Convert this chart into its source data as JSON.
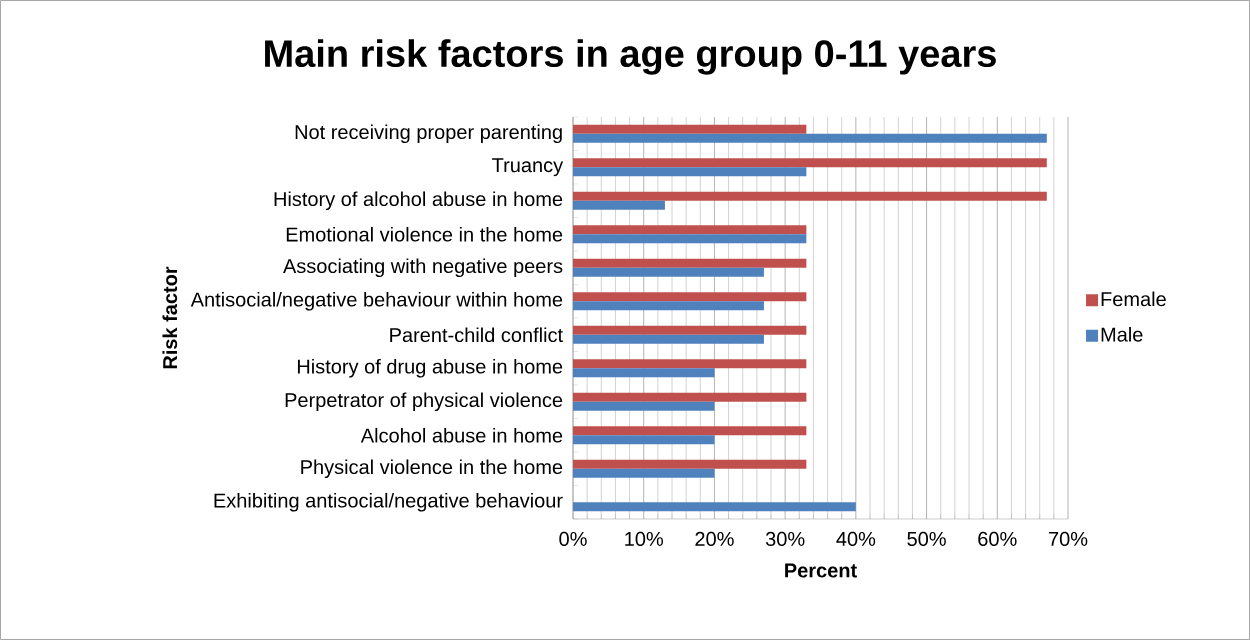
{
  "chart_data": {
    "type": "bar",
    "orientation": "horizontal",
    "title": "Main risk factors in age group 0-11 years",
    "xlabel": "Percent",
    "ylabel": "Risk factor",
    "categories": [
      "Not receiving proper parenting",
      "Truancy",
      "History of alcohol abuse in home",
      "Emotional violence in the home",
      "Associating with negative peers",
      "Antisocial/negative behaviour within home",
      "Parent-child conflict",
      "History of drug abuse in home",
      "Perpetrator of physical violence",
      "Alcohol abuse in home",
      "Physical violence in the home",
      "Exhibiting antisocial/negative behaviour"
    ],
    "series": [
      {
        "name": "Female",
        "color": "#c0504d",
        "values": [
          33,
          67,
          67,
          33,
          33,
          33,
          33,
          33,
          33,
          33,
          33,
          0
        ]
      },
      {
        "name": "Male",
        "color": "#4f81bd",
        "values": [
          67,
          33,
          13,
          33,
          27,
          27,
          27,
          20,
          20,
          20,
          20,
          40
        ]
      }
    ],
    "xlim": [
      0,
      70
    ],
    "xticks": [
      {
        "value": 0,
        "label": "0%"
      },
      {
        "value": 10,
        "label": "10%"
      },
      {
        "value": 20,
        "label": "20%"
      },
      {
        "value": 30,
        "label": "30%"
      },
      {
        "value": 40,
        "label": "40%"
      },
      {
        "value": 50,
        "label": "50%"
      },
      {
        "value": 60,
        "label": "60%"
      },
      {
        "value": 70,
        "label": "70%"
      }
    ],
    "grid": "x",
    "legend": "right"
  }
}
